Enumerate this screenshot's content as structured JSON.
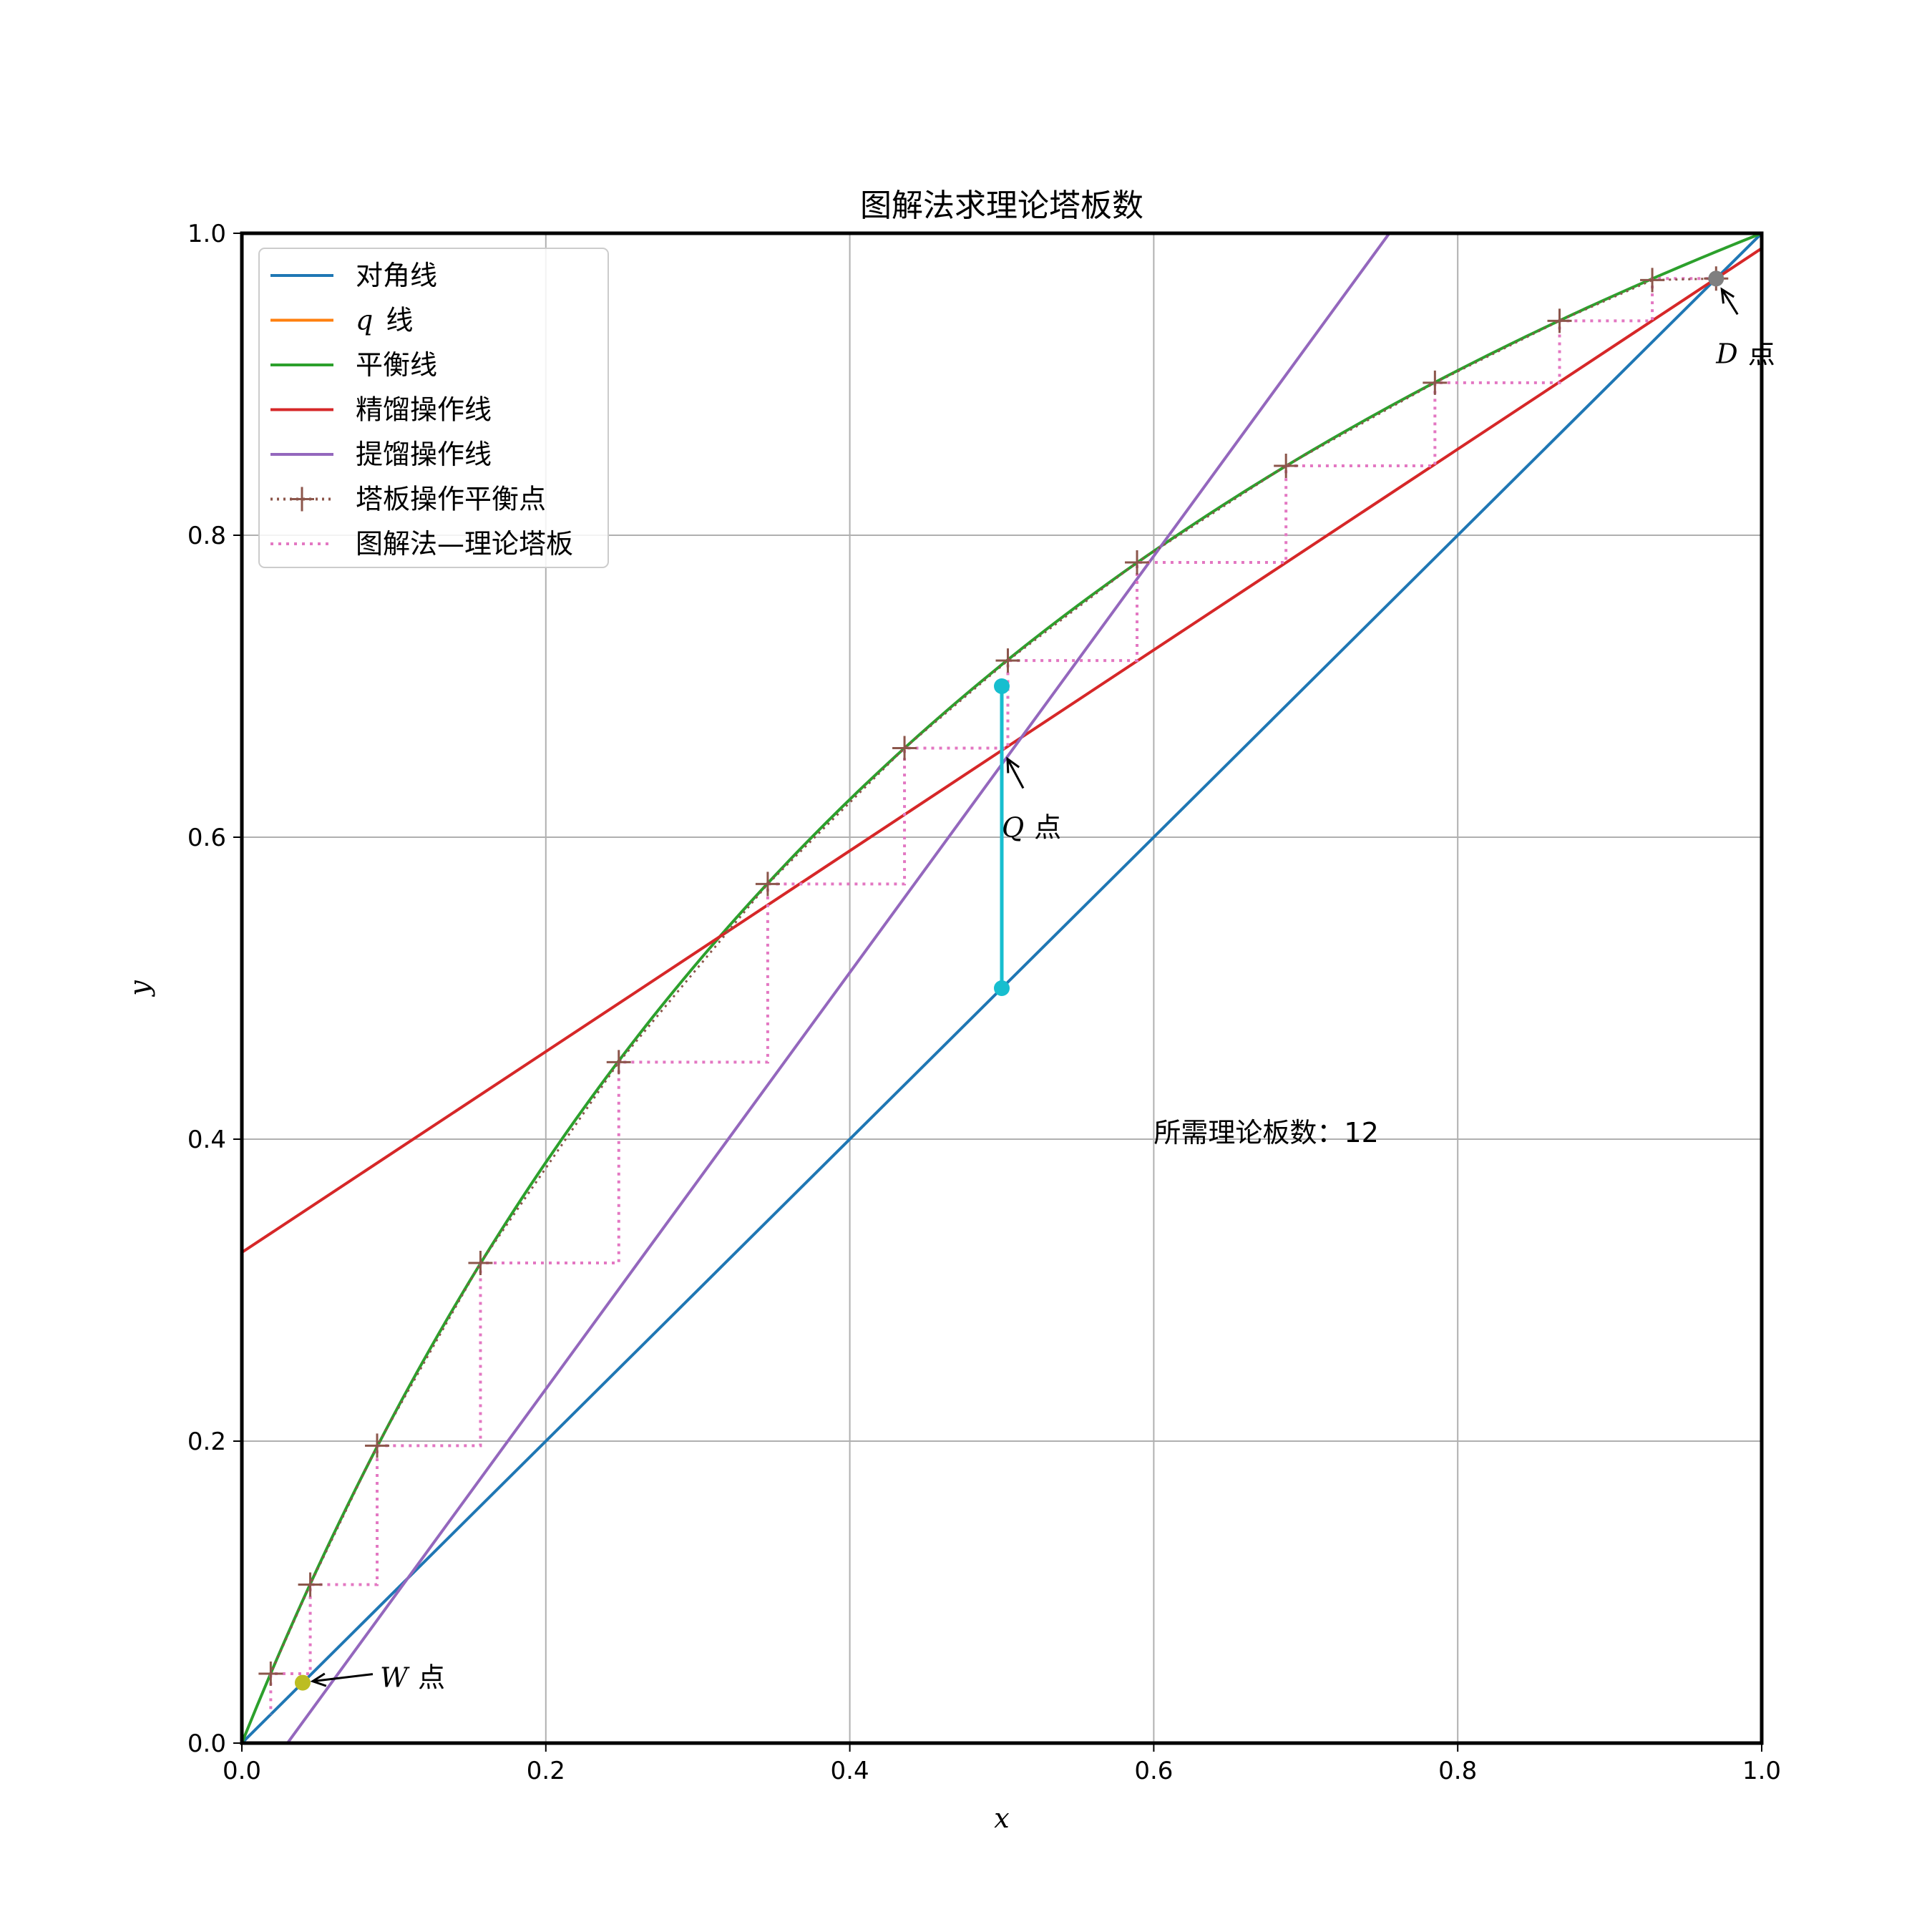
{
  "chart_data": {
    "type": "line",
    "title": "图解法求理论塔板数",
    "xlabel": "x",
    "ylabel": "y",
    "xlim": [
      0.0,
      1.0
    ],
    "ylim": [
      0.0,
      1.0
    ],
    "xticks": [
      "0.0",
      "0.2",
      "0.4",
      "0.6",
      "0.8",
      "1.0"
    ],
    "yticks": [
      "0.0",
      "0.2",
      "0.4",
      "0.6",
      "0.8",
      "1.0"
    ],
    "grid": true,
    "legend_position": "top-left",
    "legend": [
      {
        "label": "对角线",
        "color": "#1f77b4",
        "style": "solid"
      },
      {
        "label_italic": "q",
        "label": "线",
        "color": "#ff7f0e",
        "style": "solid"
      },
      {
        "label": "平衡线",
        "color": "#2ca02c",
        "style": "solid"
      },
      {
        "label": "精馏操作线",
        "color": "#d62728",
        "style": "solid"
      },
      {
        "label": "提馏操作线",
        "color": "#9467bd",
        "style": "solid"
      },
      {
        "label": "塔板操作平衡点",
        "color": "#8c564b",
        "style": "dotted-marker"
      },
      {
        "label": "图解法—理论塔板",
        "color": "#e377c2",
        "style": "dotted"
      }
    ],
    "equilibrium_alpha": 2.5,
    "diagonal": {
      "x": [
        0.0,
        1.0
      ],
      "y": [
        0.0,
        1.0
      ]
    },
    "q_line": {
      "x": [
        0.5,
        0.5
      ],
      "y": [
        0.5,
        0.7
      ]
    },
    "rectifying_line": {
      "x": [
        0.0,
        1.0
      ],
      "y": [
        0.325,
        0.99
      ]
    },
    "stripping_line": {
      "x": [
        0.03,
        0.755
      ],
      "y": [
        0.0,
        1.0
      ]
    },
    "stage_points": {
      "x": [
        0.97,
        0.928,
        0.867,
        0.785,
        0.687,
        0.589,
        0.504,
        0.436,
        0.346,
        0.248,
        0.157,
        0.089,
        0.045,
        0.019
      ],
      "y": [
        0.97,
        0.969,
        0.942,
        0.901,
        0.846,
        0.782,
        0.717,
        0.659,
        0.569,
        0.451,
        0.318,
        0.197,
        0.105,
        0.046
      ]
    },
    "stage_corners": {
      "x": [
        0.97,
        0.928,
        0.928,
        0.867,
        0.867,
        0.785,
        0.785,
        0.687,
        0.687,
        0.589,
        0.589,
        0.504,
        0.504,
        0.436,
        0.436,
        0.346,
        0.346,
        0.248,
        0.248,
        0.157,
        0.157,
        0.089,
        0.089,
        0.045,
        0.045,
        0.019,
        0.019
      ],
      "y": [
        0.97,
        0.97,
        0.942,
        0.942,
        0.901,
        0.901,
        0.846,
        0.846,
        0.782,
        0.782,
        0.717,
        0.717,
        0.659,
        0.659,
        0.569,
        0.569,
        0.451,
        0.451,
        0.318,
        0.318,
        0.197,
        0.197,
        0.105,
        0.105,
        0.046,
        0.046,
        0.019
      ]
    },
    "points": [
      {
        "name": "D",
        "suffix": "点",
        "x": 0.97,
        "y": 0.97,
        "color": "#7f7f7f"
      },
      {
        "name": "Q",
        "suffix": "点",
        "x": 0.5,
        "y": 0.659,
        "color": null
      },
      {
        "name": "W",
        "suffix": "点",
        "x": 0.04,
        "y": 0.04,
        "color": "#bcbd22"
      }
    ],
    "q_endpoints": {
      "x": [
        0.5,
        0.5
      ],
      "y": [
        0.5,
        0.7
      ],
      "color": "#17becf"
    },
    "annotation": "所需理论板数：12"
  }
}
